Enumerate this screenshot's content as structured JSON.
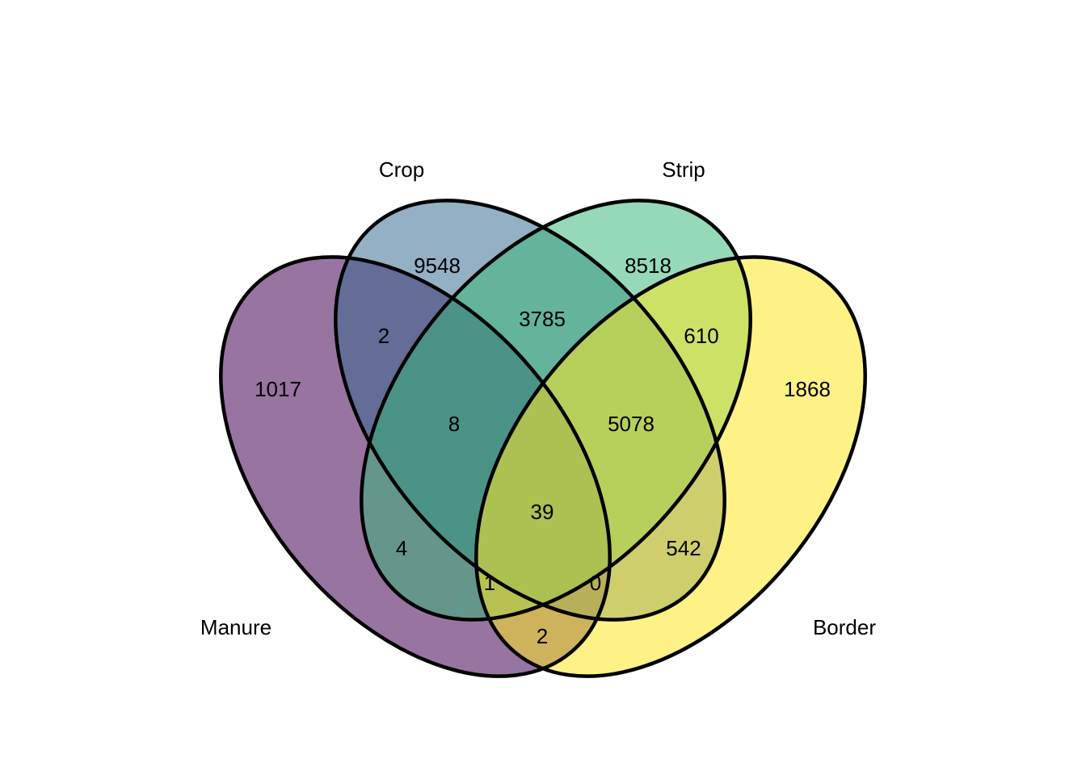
{
  "diagram": {
    "type": "venn-4-set",
    "sets": [
      {
        "key": "manure",
        "label": "Manure",
        "color": "#440154",
        "fill_opacity": 0.55
      },
      {
        "key": "crop",
        "label": "Crop",
        "color": "#31688E",
        "fill_opacity": 0.52
      },
      {
        "key": "strip",
        "label": "Strip",
        "color": "#35B779",
        "fill_opacity": 0.52
      },
      {
        "key": "border",
        "label": "Border",
        "color": "#FDE725",
        "fill_opacity": 0.55
      }
    ],
    "regions": [
      {
        "sets": [
          "manure"
        ],
        "count": "1017"
      },
      {
        "sets": [
          "crop"
        ],
        "count": "9548"
      },
      {
        "sets": [
          "strip"
        ],
        "count": "8518"
      },
      {
        "sets": [
          "border"
        ],
        "count": "1868"
      },
      {
        "sets": [
          "manure",
          "crop"
        ],
        "count": "2"
      },
      {
        "sets": [
          "crop",
          "strip"
        ],
        "count": "3785"
      },
      {
        "sets": [
          "strip",
          "border"
        ],
        "count": "610"
      },
      {
        "sets": [
          "manure",
          "crop",
          "strip"
        ],
        "count": "8"
      },
      {
        "sets": [
          "crop",
          "strip",
          "border"
        ],
        "count": "5078"
      },
      {
        "sets": [
          "manure",
          "strip"
        ],
        "count": "4"
      },
      {
        "sets": [
          "manure",
          "crop",
          "strip",
          "border"
        ],
        "count": "39"
      },
      {
        "sets": [
          "crop",
          "border"
        ],
        "count": "542"
      },
      {
        "sets": [
          "manure",
          "strip",
          "border"
        ],
        "count": "1"
      },
      {
        "sets": [
          "manure",
          "crop",
          "border"
        ],
        "count": "0"
      },
      {
        "sets": [
          "manure",
          "border"
        ],
        "count": "2"
      }
    ],
    "outline_color": "#000000"
  }
}
